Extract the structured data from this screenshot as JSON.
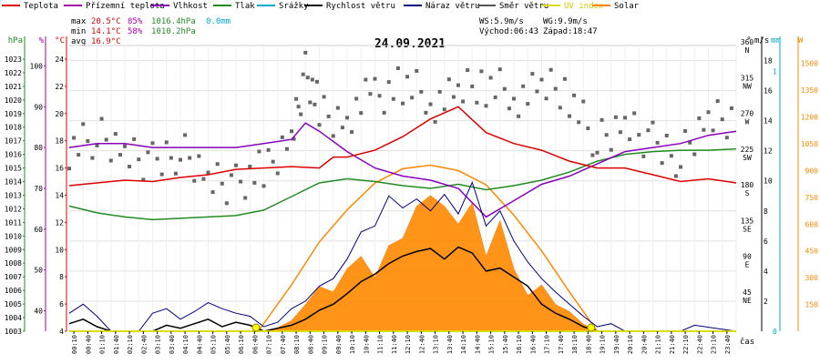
{
  "chart_data": {
    "type": "line",
    "title": "24.09.2021",
    "legend": [
      {
        "name": "Teplota",
        "color": "#dd0000"
      },
      {
        "name": "Přízemní teplota",
        "color": "#aa00aa"
      },
      {
        "name": "Vlhkost",
        "color": "#8800bb"
      },
      {
        "name": "Tlak",
        "color": "#228b22"
      },
      {
        "name": "Srážky",
        "color": "#00aacc"
      },
      {
        "name": "Rychlost větru",
        "color": "#000000"
      },
      {
        "name": "Náraz větru",
        "color": "#000080"
      },
      {
        "name": "Směr větru",
        "color": "#555555"
      },
      {
        "name": "UV index",
        "color": "#dddd00"
      },
      {
        "name": "Solar",
        "color": "#ff8800"
      }
    ],
    "stats": {
      "max_label": "max",
      "max_temp": "20.5°C",
      "max_hum": "85%",
      "max_press": "1016.4hPa",
      "max_rain": "0.0mm",
      "min_label": "min",
      "min_temp": "14.1°C",
      "min_hum": "58%",
      "min_press": "1010.2hPa",
      "avg_label": "avg",
      "avg_temp": "16.9°C",
      "ws": "WS:5.9m/s",
      "wg": "WG:9.9m/s",
      "sunrise": "Východ:06:43",
      "sunset": "Západ:18:47"
    },
    "axes": {
      "hpa": {
        "unit": "hPa",
        "ticks": [
          "1003",
          "1004",
          "1005",
          "1006",
          "1007",
          "1008",
          "1009",
          "1010",
          "1011",
          "1012",
          "1013",
          "1014",
          "1015",
          "1016",
          "1017",
          "1018",
          "1019",
          "1020",
          "1021",
          "1022",
          "1023"
        ],
        "range": [
          1003,
          1024
        ],
        "color": "#228b22"
      },
      "pct": {
        "unit": "%",
        "ticks": [
          "40",
          "50",
          "60",
          "70",
          "80",
          "90",
          "100"
        ],
        "range": [
          35,
          105
        ],
        "color": "#aa00aa"
      },
      "temp": {
        "unit": "°C",
        "ticks": [
          "4",
          "6",
          "8",
          "10",
          "12",
          "14",
          "16",
          "18",
          "20",
          "22",
          "24"
        ],
        "range": [
          4,
          25
        ],
        "color": "#dd0000"
      },
      "dir": {
        "unit": "°",
        "ticks": [
          "45",
          "90",
          "135",
          "180",
          "225",
          "270",
          "315",
          "360"
        ],
        "labels": [
          "NE",
          "E",
          "SE",
          "S",
          "SW",
          "W",
          "NW",
          "N"
        ],
        "range": [
          0,
          360
        ]
      },
      "ms": {
        "unit": "m/s",
        "ticks": [
          "2",
          "4",
          "6",
          "8",
          "10",
          "12",
          "14",
          "16",
          "18"
        ],
        "range": [
          0,
          19
        ]
      },
      "mm": {
        "unit": "mm",
        "ticks": [
          "0",
          "1"
        ],
        "range": [
          0,
          1.1
        ],
        "color": "#00aacc"
      },
      "wm2": {
        "unit": "W",
        "ticks": [
          "150",
          "300",
          "450",
          "600",
          "750",
          "900",
          "1050",
          "1200",
          "1350",
          "1500"
        ],
        "range": [
          0,
          1600
        ],
        "color": "#ff8800"
      },
      "x_label": "čas",
      "x_ticks": [
        "00:10",
        "00:40",
        "01:10",
        "01:40",
        "02:10",
        "02:40",
        "03:10",
        "03:40",
        "04:10",
        "04:40",
        "05:10",
        "05:40",
        "06:10",
        "06:40",
        "07:10",
        "07:40",
        "08:10",
        "08:40",
        "09:10",
        "09:40",
        "10:10",
        "10:40",
        "11:10",
        "11:40",
        "12:10",
        "12:40",
        "13:10",
        "13:40",
        "14:10",
        "14:40",
        "15:10",
        "15:40",
        "16:10",
        "16:40",
        "17:10",
        "17:40",
        "18:10",
        "18:40",
        "19:10",
        "19:40",
        "20:10",
        "20:40",
        "21:10",
        "21:40",
        "22:10",
        "22:40",
        "23:10",
        "23:40"
      ],
      "x_range": [
        0,
        24
      ]
    },
    "series": [
      {
        "name": "Teplota",
        "axis": "temp",
        "x": [
          0,
          1,
          2,
          3,
          4,
          5,
          6,
          7,
          8,
          9,
          9.5,
          10,
          11,
          12,
          13,
          14,
          15,
          16,
          17,
          18,
          19,
          20,
          21,
          22,
          23,
          24
        ],
        "values": [
          14.7,
          14.9,
          15.1,
          15.0,
          15.3,
          15.5,
          15.9,
          16.0,
          16.1,
          16.0,
          16.8,
          16.8,
          17.3,
          18.3,
          19.6,
          20.5,
          18.6,
          17.8,
          17.3,
          16.5,
          16.0,
          16.0,
          15.5,
          15.0,
          15.2,
          14.9
        ]
      },
      {
        "name": "Vlhkost",
        "axis": "pct",
        "x": [
          0,
          1,
          2,
          3,
          4,
          5,
          6,
          7,
          8,
          8.5,
          9,
          10,
          11,
          12,
          13,
          14,
          15,
          16,
          17,
          18,
          19,
          20,
          21,
          22,
          23,
          24
        ],
        "values": [
          80,
          81,
          81,
          80,
          80,
          80,
          80,
          81,
          82,
          86,
          84,
          79,
          75,
          73,
          72,
          70,
          63,
          67,
          71,
          73,
          76,
          79,
          80,
          81,
          83,
          84
        ]
      },
      {
        "name": "Tlak",
        "axis": "hpa",
        "x": [
          0,
          1,
          2,
          3,
          4,
          5,
          6,
          7,
          8,
          9,
          10,
          11,
          12,
          13,
          14,
          15,
          16,
          17,
          18,
          19,
          20,
          21,
          22,
          23,
          24
        ],
        "values": [
          1012.2,
          1011.7,
          1011.4,
          1011.2,
          1011.3,
          1011.4,
          1011.5,
          1011.9,
          1012.9,
          1013.9,
          1014.2,
          1014.0,
          1013.7,
          1013.5,
          1013.8,
          1013.4,
          1013.7,
          1014.1,
          1014.7,
          1015.5,
          1016.0,
          1016.2,
          1016.3,
          1016.3,
          1016.4
        ]
      },
      {
        "name": "Solar",
        "axis": "wm2",
        "x": [
          0,
          7,
          7.5,
          8,
          8.5,
          9,
          9.5,
          10,
          10.5,
          11,
          11.5,
          12,
          12.5,
          13,
          13.5,
          14,
          14.5,
          15,
          15.5,
          16,
          16.5,
          17,
          17.5,
          18,
          18.5,
          19,
          24
        ],
        "values": [
          0,
          0,
          20,
          60,
          150,
          250,
          220,
          350,
          420,
          300,
          480,
          520,
          700,
          760,
          700,
          600,
          720,
          420,
          620,
          350,
          200,
          260,
          150,
          110,
          40,
          0,
          0
        ]
      },
      {
        "name": "Solar max",
        "axis": "wm2",
        "x": [
          6.8,
          8,
          9,
          10,
          11,
          12,
          13,
          14,
          15,
          16,
          17,
          18,
          19
        ],
        "values": [
          0,
          260,
          500,
          680,
          830,
          910,
          930,
          900,
          820,
          650,
          450,
          220,
          0
        ]
      },
      {
        "name": "Rychlost větru",
        "axis": "ms",
        "x": [
          0,
          0.5,
          1,
          1.5,
          2,
          3,
          3.5,
          4,
          5,
          5.5,
          6,
          6.5,
          7,
          8,
          8.5,
          9,
          9.5,
          10,
          10.5,
          11,
          11.5,
          12,
          12.5,
          13,
          13.5,
          14,
          14.5,
          15,
          15.5,
          16,
          16.5,
          17,
          17.5,
          18,
          18.5,
          19,
          24
        ],
        "values": [
          0.5,
          0.8,
          0.3,
          0,
          0,
          0,
          0.4,
          0.2,
          0.8,
          0.3,
          0.6,
          0.4,
          0,
          0.4,
          0.8,
          1.4,
          1.8,
          2.5,
          3.3,
          3.8,
          4.5,
          5.0,
          5.3,
          5.5,
          4.8,
          5.6,
          5.2,
          4.0,
          4.2,
          3.6,
          3.0,
          1.8,
          1.2,
          0.8,
          0.3,
          0,
          0
        ]
      },
      {
        "name": "Náraz větru",
        "axis": "ms",
        "x": [
          0,
          0.5,
          1,
          1.5,
          2,
          2.5,
          3,
          3.5,
          4,
          4.5,
          5,
          5.5,
          6,
          6.5,
          7,
          7.5,
          8,
          8.5,
          9,
          9.5,
          10,
          10.5,
          11,
          11.5,
          12,
          12.5,
          13,
          13.5,
          14,
          14.5,
          15,
          15.5,
          16,
          16.5,
          17,
          17.5,
          18,
          18.5,
          19,
          19.5,
          20,
          22,
          22.5,
          24
        ],
        "values": [
          1.2,
          1.8,
          1.0,
          0,
          0,
          0,
          1.2,
          1.5,
          0.8,
          1.3,
          1.9,
          1.5,
          1.2,
          1.0,
          0.3,
          0.6,
          1.5,
          2.0,
          3.0,
          3.5,
          4.8,
          6.6,
          7.0,
          9.0,
          8.2,
          8.8,
          8.0,
          9.1,
          7.8,
          9.9,
          7.0,
          8.0,
          6.0,
          4.6,
          3.5,
          2.6,
          1.8,
          1.0,
          0.3,
          0.5,
          0,
          0,
          0.4,
          0
        ]
      },
      {
        "name": "Směr větru",
        "axis": "dir",
        "x": [
          0,
          1,
          2,
          3,
          4,
          5,
          6,
          7,
          8,
          8.5,
          9,
          10,
          11,
          12,
          13,
          14,
          15,
          16,
          17,
          18,
          19,
          20,
          21,
          22,
          23,
          24
        ],
        "values": [
          235,
          245,
          225,
          210,
          230,
          195,
          185,
          200,
          250,
          330,
          280,
          270,
          300,
          310,
          290,
          295,
          310,
          300,
          305,
          300,
          235,
          260,
          235,
          220,
          270,
          270
        ]
      },
      {
        "name": "Srážky",
        "axis": "mm",
        "x": [
          0,
          24
        ],
        "values": [
          0,
          0
        ]
      }
    ],
    "sun_markers": [
      6.72,
      18.78
    ]
  }
}
